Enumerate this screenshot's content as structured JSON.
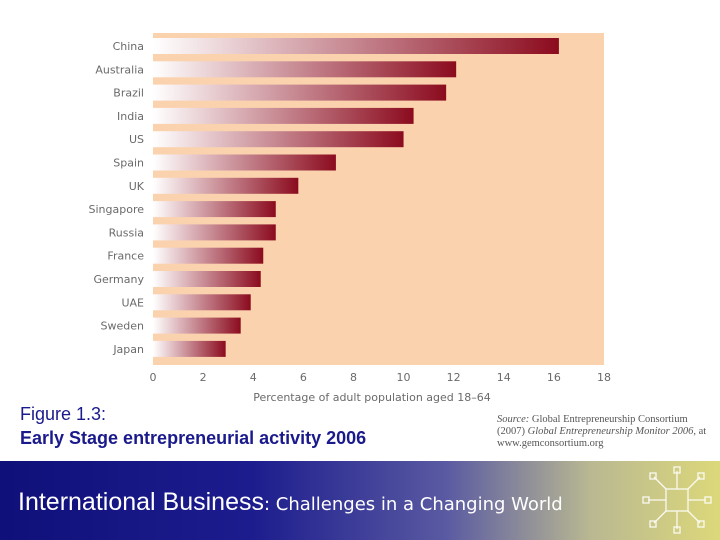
{
  "chart_data": {
    "type": "bar",
    "orientation": "horizontal",
    "categories": [
      "China",
      "Australia",
      "Brazil",
      "India",
      "US",
      "Spain",
      "UK",
      "Singapore",
      "Russia",
      "France",
      "Germany",
      "UAE",
      "Sweden",
      "Japan"
    ],
    "values": [
      16.2,
      12.1,
      11.7,
      10.4,
      10.0,
      7.3,
      5.8,
      4.9,
      4.9,
      4.4,
      4.3,
      3.9,
      3.5,
      2.9
    ],
    "xlabel": "Percentage of adult population aged 18–64",
    "xlim": [
      0,
      18
    ],
    "xticks": [
      0,
      2,
      4,
      6,
      8,
      10,
      12,
      14,
      16,
      18
    ],
    "grid": false,
    "colors": {
      "plot_background": "#fbd2ae",
      "bar_start": "#ffffff",
      "bar_end": "#8b0b1e"
    }
  },
  "caption": {
    "line1": "Figure 1.3:",
    "line2": "Early Stage entrepreneurial activity 2006"
  },
  "source": {
    "prefix": "Source:",
    "text1": " Global Entrepreneurship Consortium (2007) ",
    "italic": "Global Entrepreneurship Monitor 2006",
    "text2": ", at www.gemconsortium.org"
  },
  "footer": {
    "title": "International Business",
    "subtitle": ": Challenges in a Changing World"
  }
}
